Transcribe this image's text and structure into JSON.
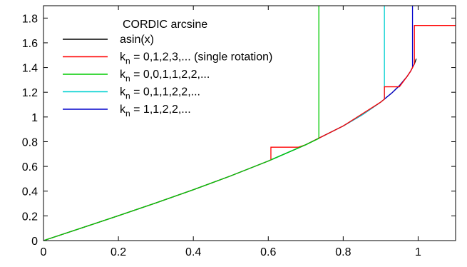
{
  "chart_data": {
    "type": "line",
    "title": "CORDIC arcsine",
    "xlabel": "",
    "ylabel": "",
    "xlim": [
      0,
      1.1
    ],
    "ylim": [
      0,
      1.9
    ],
    "x_ticks": [
      0,
      0.2,
      0.4,
      0.6,
      0.8,
      1
    ],
    "x_tick_labels": [
      "0",
      "0.2",
      "0.4",
      "0.6",
      "0.8",
      "1"
    ],
    "y_ticks": [
      0,
      0.2,
      0.4,
      0.6,
      0.8,
      1,
      1.2,
      1.4,
      1.6,
      1.8
    ],
    "y_tick_labels": [
      "0",
      "0.2",
      "0.4",
      "0.6",
      "0.8",
      "1",
      "1.2",
      "1.4",
      "1.6",
      "1.8"
    ],
    "grid": false,
    "legend_position": "top-left",
    "series": [
      {
        "name": "asin(x)",
        "color": "#000000",
        "x": [
          0,
          0.1,
          0.2,
          0.3,
          0.4,
          0.5,
          0.6,
          0.7,
          0.8,
          0.85,
          0.9,
          0.93,
          0.95,
          0.97,
          0.98,
          0.99,
          0.995
        ],
        "y": [
          0,
          0.1002,
          0.2014,
          0.3047,
          0.4115,
          0.5236,
          0.6435,
          0.7754,
          0.9273,
          1.016,
          1.1198,
          1.1944,
          1.2532,
          1.3252,
          1.3705,
          1.4293,
          1.4708
        ]
      },
      {
        "name_parts": {
          "base": "k",
          "sub": "n",
          "rest": " = 0,1,2,3,... (single rotation)"
        },
        "color": "#ff0000",
        "x": [
          0,
          0.1,
          0.2,
          0.3,
          0.4,
          0.5,
          0.6,
          0.607,
          0.607,
          0.68,
          0.7,
          0.8,
          0.9,
          0.91,
          0.91,
          0.95,
          0.97,
          0.98,
          0.99,
          0.99,
          1.0,
          1.1
        ],
        "y": [
          0,
          0.1002,
          0.2014,
          0.3047,
          0.4115,
          0.5236,
          0.6435,
          0.652,
          0.7554,
          0.7554,
          0.7754,
          0.9273,
          1.1198,
          1.1437,
          1.2441,
          1.2441,
          1.3252,
          1.3705,
          1.4293,
          1.74,
          1.74,
          1.74
        ]
      },
      {
        "name_parts": {
          "base": "k",
          "sub": "n",
          "rest": " = 0,0,1,1,2,2,..."
        },
        "color": "#00cc00",
        "x": [
          0,
          0.1,
          0.2,
          0.3,
          0.4,
          0.5,
          0.6,
          0.7,
          0.735,
          0.735
        ],
        "y": [
          0,
          0.1002,
          0.2014,
          0.3047,
          0.4115,
          0.5236,
          0.6435,
          0.7754,
          0.826,
          1.9
        ]
      },
      {
        "name_parts": {
          "base": "k",
          "sub": "n",
          "rest": " = 0,1,1,2,2,..."
        },
        "color": "#00d0d0",
        "x": [
          0,
          0.1,
          0.2,
          0.3,
          0.4,
          0.5,
          0.6,
          0.7,
          0.8,
          0.85,
          0.9,
          0.91,
          0.91
        ],
        "y": [
          0,
          0.1002,
          0.2014,
          0.3047,
          0.4115,
          0.5236,
          0.6435,
          0.7754,
          0.9273,
          1.016,
          1.1198,
          1.1437,
          1.9
        ]
      },
      {
        "name_parts": {
          "base": "k",
          "sub": "n",
          "rest": " = 1,1,2,2,..."
        },
        "color": "#0000cc",
        "x": [
          0,
          0.1,
          0.2,
          0.3,
          0.4,
          0.5,
          0.6,
          0.7,
          0.8,
          0.85,
          0.9,
          0.93,
          0.95,
          0.97,
          0.98,
          0.985,
          0.985
        ],
        "y": [
          0,
          0.1002,
          0.2014,
          0.3047,
          0.4115,
          0.5236,
          0.6435,
          0.7754,
          0.9273,
          1.016,
          1.1198,
          1.1944,
          1.2532,
          1.3252,
          1.3705,
          1.4,
          1.9
        ]
      }
    ]
  }
}
